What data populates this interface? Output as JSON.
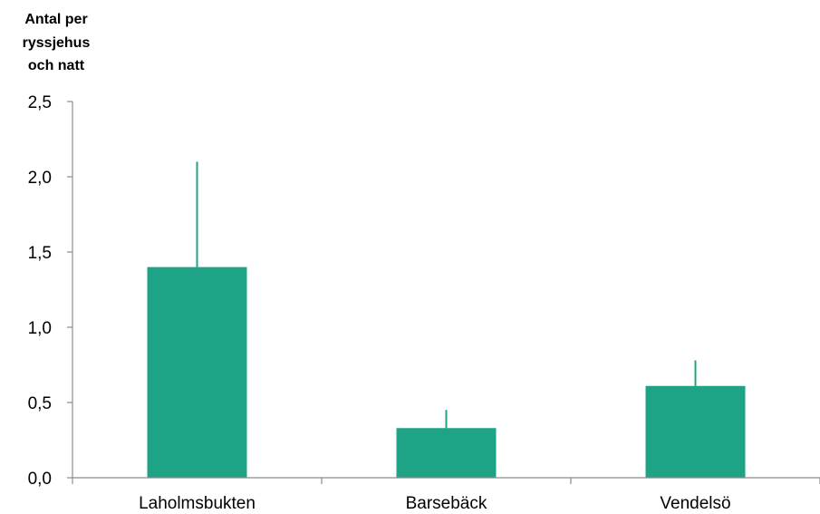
{
  "chart_data": {
    "type": "bar",
    "ylabel_lines": [
      "Antal per",
      "ryssjehus",
      "och natt"
    ],
    "categories": [
      "Laholmsbukten",
      "Barsebäck",
      "Vendelsö"
    ],
    "values": [
      1.4,
      0.33,
      0.61
    ],
    "error_upper": [
      2.1,
      0.45,
      0.78
    ],
    "ylim": [
      0,
      2.5
    ],
    "yticks": [
      0.0,
      0.5,
      1.0,
      1.5,
      2.0,
      2.5
    ],
    "ytick_labels": [
      "0,0",
      "0,5",
      "1,0",
      "1,5",
      "2,0",
      "2,5"
    ],
    "bar_color": "#1fa386",
    "axis_color": "#8c8c8c",
    "grid": false
  }
}
